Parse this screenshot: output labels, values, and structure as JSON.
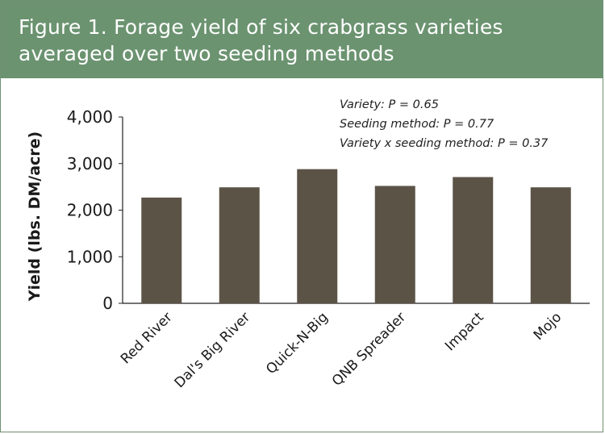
{
  "figure": {
    "title": "Figure 1. Forage yield of six crabgrass varieties averaged over two seeding methods",
    "stats": [
      "Variety: P = 0.65",
      "Seeding method: P = 0.77",
      "Variety x seeding method: P = 0.37"
    ]
  },
  "colors": {
    "header_bg": "#6b9370",
    "bar": "#5c5347",
    "border": "#6f8f74"
  },
  "chart_data": {
    "type": "bar",
    "title": "Figure 1. Forage yield of six crabgrass varieties averaged over two seeding methods",
    "xlabel": "",
    "ylabel": "Yield (lbs. DM/acre)",
    "categories": [
      "Red River",
      "Dal's Big River",
      "Quick-N-Big",
      "QNB Spreader",
      "Impact",
      "Mojo"
    ],
    "values": [
      2270,
      2490,
      2880,
      2520,
      2710,
      2490
    ],
    "ylim": [
      0,
      4000
    ],
    "yticks": [
      0,
      1000,
      2000,
      3000,
      4000
    ],
    "ytick_labels": [
      "0",
      "1,000",
      "2,000",
      "3,000",
      "4,000"
    ],
    "grid": false,
    "legend": "none"
  }
}
